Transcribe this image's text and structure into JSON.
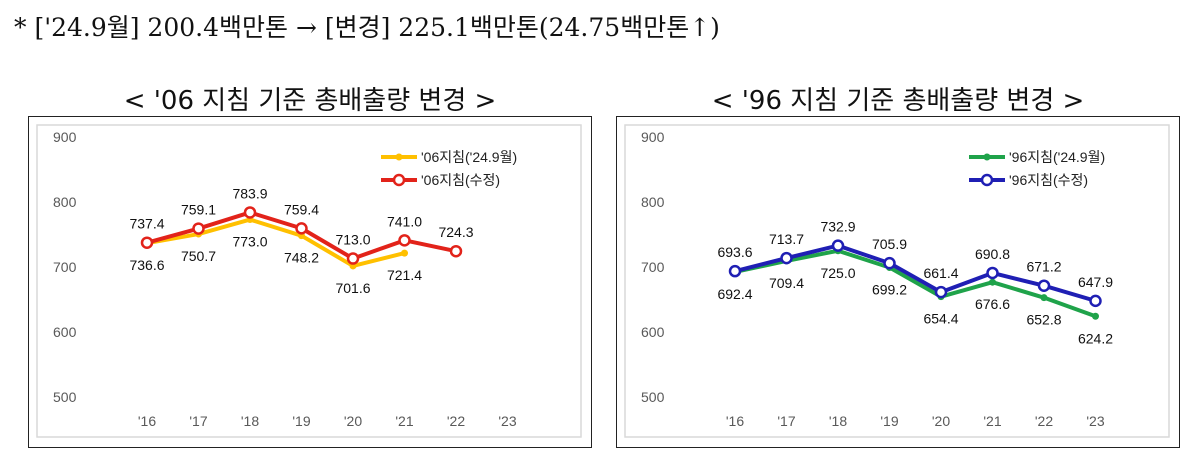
{
  "note": "* ['24.9월] 200.4백만톤 → [변경] 225.1백만톤(24.75백만톤↑)",
  "chart_data": [
    {
      "type": "line",
      "title": "< '06 지침 기준 총배출량 변경 >",
      "categories": [
        "'16",
        "'17",
        "'18",
        "'19",
        "'20",
        "'21",
        "'22",
        "'23"
      ],
      "ylim": [
        500,
        900
      ],
      "yticks": [
        500,
        600,
        700,
        800,
        900
      ],
      "grid": false,
      "legend": "top-right",
      "series": [
        {
          "name": "'06지침('24.9월)",
          "color": "#FFC000",
          "marker": "dot",
          "values": [
            736.6,
            750.7,
            773.0,
            748.2,
            701.6,
            721.4,
            null,
            null
          ],
          "labels": [
            "736.6",
            "750.7",
            "773.0",
            "748.2",
            "701.6",
            "721.4",
            "",
            ""
          ],
          "label_pos": "below"
        },
        {
          "name": "'06지침(수정)",
          "color": "#E2231A",
          "marker": "circle",
          "values": [
            737.4,
            759.1,
            783.9,
            759.4,
            713.0,
            741.0,
            724.3,
            null
          ],
          "labels": [
            "737.4",
            "759.1",
            "783.9",
            "759.4",
            "713.0",
            "741.0",
            "724.3",
            ""
          ],
          "label_pos": "above"
        }
      ]
    },
    {
      "type": "line",
      "title": "< '96 지침 기준 총배출량 변경 >",
      "categories": [
        "'16",
        "'17",
        "'18",
        "'19",
        "'20",
        "'21",
        "'22",
        "'23"
      ],
      "ylim": [
        500,
        900
      ],
      "yticks": [
        500,
        600,
        700,
        800,
        900
      ],
      "grid": false,
      "legend": "top-right",
      "series": [
        {
          "name": "'96지침('24.9월)",
          "color": "#1FA34A",
          "marker": "dot",
          "values": [
            692.4,
            709.4,
            725.0,
            699.2,
            654.4,
            676.6,
            652.8,
            624.2
          ],
          "labels": [
            "692.4",
            "709.4",
            "725.0",
            "699.2",
            "654.4",
            "676.6",
            "652.8",
            "624.2"
          ],
          "label_pos": "below"
        },
        {
          "name": "'96지침(수정)",
          "color": "#1F1FB4",
          "marker": "circle",
          "values": [
            693.6,
            713.7,
            732.9,
            705.9,
            661.4,
            690.8,
            671.2,
            647.9
          ],
          "labels": [
            "693.6",
            "713.7",
            "732.9",
            "705.9",
            "661.4",
            "690.8",
            "671.2",
            "647.9"
          ],
          "label_pos": "above"
        }
      ]
    }
  ]
}
